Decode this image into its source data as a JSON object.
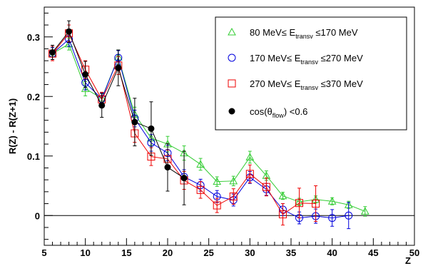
{
  "chart_data": {
    "type": "scatter",
    "xlabel": "Z",
    "ylabel": "R(Z) - R(Z+1)",
    "xlim": [
      5,
      50
    ],
    "ylim": [
      -0.05,
      0.35
    ],
    "x_ticks": [
      5,
      10,
      15,
      20,
      25,
      30,
      35,
      40,
      45,
      50
    ],
    "y_ticks": [
      0,
      0.1,
      0.2,
      0.3
    ],
    "x_tick_labels": [
      "5",
      "10",
      "15",
      "20",
      "25",
      "30",
      "35",
      "40",
      "45",
      "50"
    ],
    "y_tick_labels": [
      "0",
      "0.1",
      "0.2",
      "0.3"
    ],
    "grid": false,
    "reference_line_y": 0,
    "legend_position": "top-right",
    "series": [
      {
        "name": {
          "pre": "80 MeV≤ E",
          "sub": "transv",
          "post": " ≤170 MeV"
        },
        "color": "#33cc33",
        "marker": "triangle",
        "x": [
          6,
          8,
          10,
          12,
          14,
          16,
          18,
          20,
          22,
          24,
          26,
          28,
          30,
          32,
          34,
          36,
          38,
          40,
          42,
          44
        ],
        "y": [
          0.272,
          0.288,
          0.213,
          0.197,
          0.266,
          0.17,
          0.13,
          0.12,
          0.105,
          0.086,
          0.057,
          0.058,
          0.098,
          0.067,
          0.033,
          0.023,
          0.027,
          0.024,
          0.018,
          0.007
        ],
        "err": [
          0.01,
          0.01,
          0.012,
          0.01,
          0.012,
          0.012,
          0.012,
          0.013,
          0.012,
          0.01,
          0.008,
          0.008,
          0.01,
          0.008,
          0.006,
          0.006,
          0.006,
          0.006,
          0.006,
          0.008
        ]
      },
      {
        "name": {
          "pre": "170 MeV≤ E",
          "sub": "transv",
          "post": " ≤270 MeV"
        },
        "color": "#0000dd",
        "marker": "circle",
        "x": [
          6,
          8,
          10,
          12,
          14,
          16,
          18,
          20,
          22,
          24,
          26,
          28,
          30,
          32,
          34,
          36,
          38,
          40,
          42
        ],
        "y": [
          0.272,
          0.296,
          0.223,
          0.196,
          0.265,
          0.163,
          0.122,
          0.105,
          0.065,
          0.051,
          0.032,
          0.026,
          0.064,
          0.044,
          0.01,
          -0.004,
          -0.001,
          -0.004,
          0.0
        ],
        "err": [
          0.01,
          0.012,
          0.012,
          0.01,
          0.012,
          0.014,
          0.014,
          0.013,
          0.012,
          0.01,
          0.01,
          0.01,
          0.01,
          0.01,
          0.01,
          0.01,
          0.012,
          0.014,
          0.022
        ]
      },
      {
        "name": {
          "pre": "270 MeV≤ E",
          "sub": "transv",
          "post": " ≤370 MeV"
        },
        "color": "#ee0000",
        "marker": "square",
        "x": [
          6,
          8,
          10,
          12,
          14,
          16,
          18,
          20,
          22,
          24,
          26,
          28,
          30,
          32,
          34,
          36,
          38
        ],
        "y": [
          0.272,
          0.306,
          0.245,
          0.195,
          0.252,
          0.138,
          0.099,
          0.095,
          0.059,
          0.043,
          0.017,
          0.032,
          0.07,
          0.048,
          0.002,
          0.021,
          0.02
        ],
        "err": [
          0.012,
          0.014,
          0.015,
          0.012,
          0.015,
          0.015,
          0.015,
          0.015,
          0.015,
          0.014,
          0.012,
          0.013,
          0.015,
          0.015,
          0.018,
          0.025,
          0.03
        ]
      },
      {
        "name": {
          "pre": "cos(θ",
          "sub": "flow",
          "post": ") <0.6"
        },
        "color": "#000000",
        "marker": "dot",
        "x": [
          6,
          8,
          10,
          12,
          14,
          16,
          18,
          20,
          22
        ],
        "y": [
          0.274,
          0.309,
          0.237,
          0.185,
          0.248,
          0.157,
          0.146,
          0.081,
          0.063
        ],
        "err": [
          0.012,
          0.018,
          0.022,
          0.02,
          0.03,
          0.04,
          0.045,
          0.04,
          0.045
        ]
      }
    ]
  }
}
